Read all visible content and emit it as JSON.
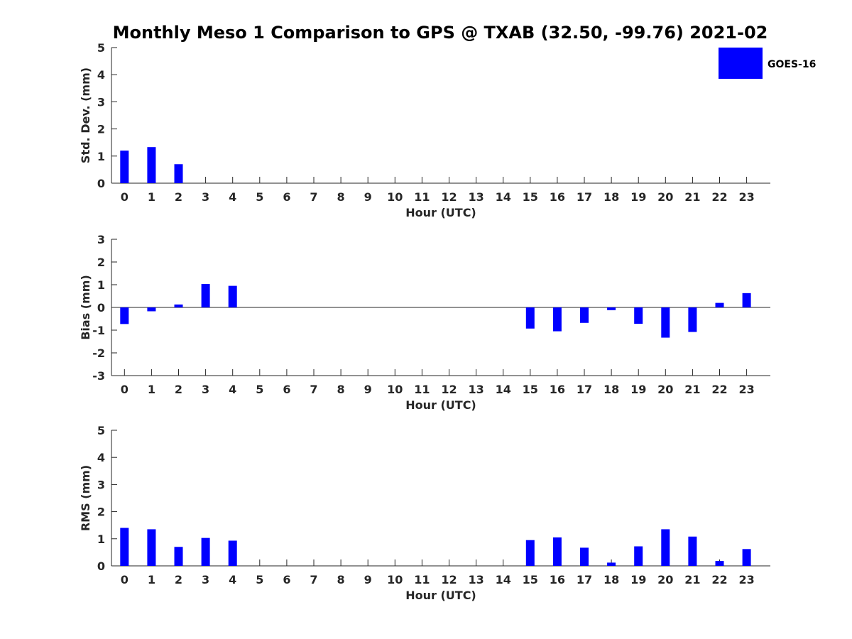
{
  "title": "Monthly Meso 1 Comparison to GPS @ TXAB (32.50, -99.76) 2021-02",
  "legend": {
    "label": "GOES-16",
    "color": "#0000ff",
    "position": "top-right"
  },
  "chart_data": [
    {
      "type": "bar",
      "ylabel": "Std. Dev. (mm)",
      "xlabel": "Hour (UTC)",
      "categories": [
        "0",
        "1",
        "2",
        "3",
        "4",
        "5",
        "6",
        "7",
        "8",
        "9",
        "10",
        "11",
        "12",
        "13",
        "14",
        "15",
        "16",
        "17",
        "18",
        "19",
        "20",
        "21",
        "22",
        "23"
      ],
      "series": [
        {
          "name": "GOES-16",
          "values": [
            1.2,
            1.33,
            0.7,
            0,
            0,
            0,
            0,
            0,
            0,
            0,
            0,
            0,
            0,
            0,
            0,
            0,
            0,
            0,
            0,
            0,
            0,
            0,
            0,
            0
          ]
        }
      ],
      "ylim": [
        0,
        5
      ],
      "yticks": [
        "0",
        "1",
        "2",
        "3",
        "4",
        "5"
      ],
      "grid": false
    },
    {
      "type": "bar",
      "ylabel": "Bias (mm)",
      "xlabel": "Hour (UTC)",
      "categories": [
        "0",
        "1",
        "2",
        "3",
        "4",
        "5",
        "6",
        "7",
        "8",
        "9",
        "10",
        "11",
        "12",
        "13",
        "14",
        "15",
        "16",
        "17",
        "18",
        "19",
        "20",
        "21",
        "22",
        "23"
      ],
      "series": [
        {
          "name": "GOES-16",
          "values": [
            -0.73,
            -0.17,
            0.13,
            1.03,
            0.95,
            0,
            0,
            0,
            0,
            0,
            0,
            0,
            0,
            0,
            0,
            -0.93,
            -1.05,
            -0.68,
            -0.12,
            -0.72,
            -1.33,
            -1.08,
            0.2,
            0.63
          ]
        }
      ],
      "ylim": [
        -3,
        3
      ],
      "yticks": [
        "-3",
        "-2",
        "-1",
        "0",
        "1",
        "2",
        "3"
      ],
      "grid": false
    },
    {
      "type": "bar",
      "ylabel": "RMS (mm)",
      "xlabel": "Hour (UTC)",
      "categories": [
        "0",
        "1",
        "2",
        "3",
        "4",
        "5",
        "6",
        "7",
        "8",
        "9",
        "10",
        "11",
        "12",
        "13",
        "14",
        "15",
        "16",
        "17",
        "18",
        "19",
        "20",
        "21",
        "22",
        "23"
      ],
      "series": [
        {
          "name": "GOES-16",
          "values": [
            1.4,
            1.35,
            0.7,
            1.03,
            0.93,
            0,
            0,
            0,
            0,
            0,
            0,
            0,
            0,
            0,
            0,
            0.95,
            1.05,
            0.67,
            0.12,
            0.72,
            1.35,
            1.08,
            0.18,
            0.62
          ]
        }
      ],
      "ylim": [
        0,
        5
      ],
      "yticks": [
        "0",
        "1",
        "2",
        "3",
        "4",
        "5"
      ],
      "grid": false
    }
  ]
}
